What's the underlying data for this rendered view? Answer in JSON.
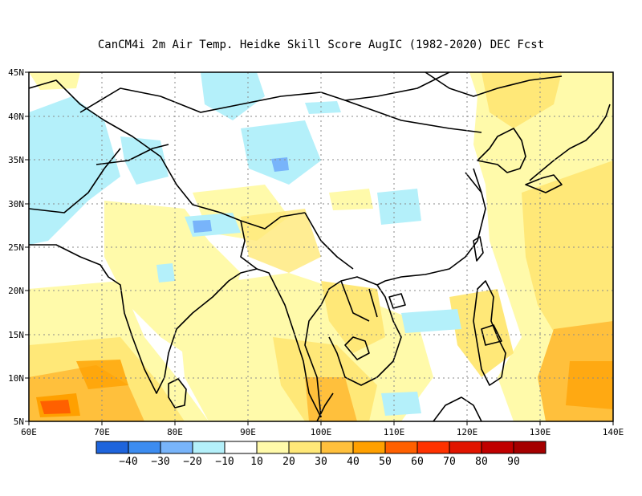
{
  "title": "CanCM4i  2m Air Temp. Heidke Skill Score AugIC (1982-2020) DEC Fcst",
  "map": {
    "lon_range": [
      60,
      140
    ],
    "lat_range": [
      5,
      45
    ],
    "lon_ticks": [
      "60E",
      "70E",
      "80E",
      "90E",
      "100E",
      "110E",
      "120E",
      "130E",
      "140E"
    ],
    "lat_ticks": [
      "5N",
      "10N",
      "15N",
      "20N",
      "25N",
      "30N",
      "35N",
      "40N",
      "45N"
    ],
    "grid": "dotted"
  },
  "colorbar": {
    "colors": [
      "#1e64dc",
      "#3c8cf0",
      "#78b4fa",
      "#b4f0fa",
      "#ffffff",
      "#fffaaa",
      "#ffe878",
      "#ffc03c",
      "#ffa000",
      "#ff6000",
      "#ff3200",
      "#e11400",
      "#c00000",
      "#a50000"
    ],
    "labels": [
      "-40",
      "-30",
      "-20",
      "-10",
      "10",
      "20",
      "30",
      "40",
      "50",
      "60",
      "70",
      "80",
      "90"
    ]
  }
}
